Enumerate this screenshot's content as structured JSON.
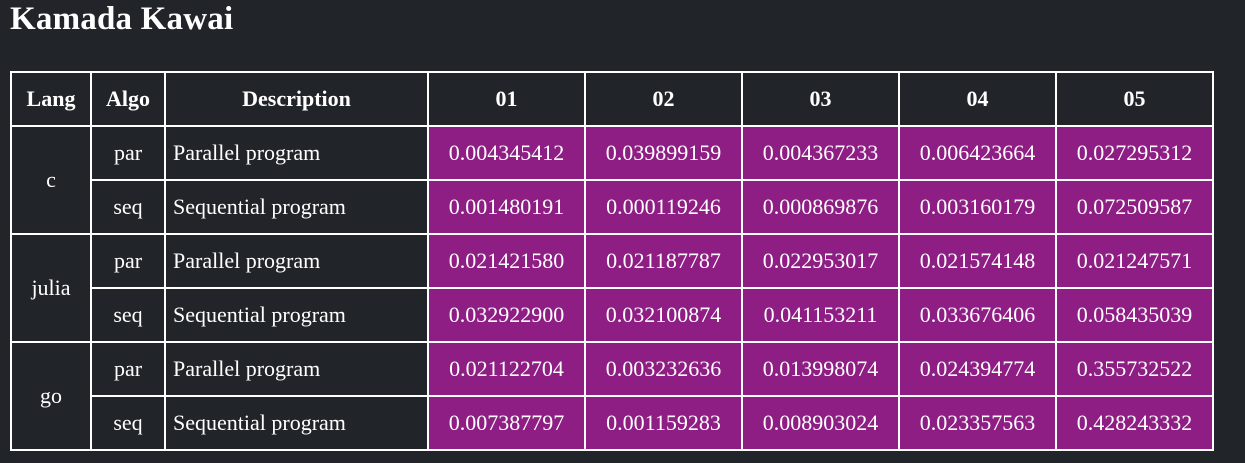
{
  "title": "Kamada Kawai",
  "headers": [
    "Lang",
    "Algo",
    "Description",
    "01",
    "02",
    "03",
    "04",
    "05"
  ],
  "groups": [
    {
      "lang": "c",
      "rows": [
        {
          "algo": "par",
          "description": "Parallel program",
          "values": [
            "0.004345412",
            "0.039899159",
            "0.004367233",
            "0.006423664",
            "0.027295312"
          ]
        },
        {
          "algo": "seq",
          "description": "Sequential program",
          "values": [
            "0.001480191",
            "0.000119246",
            "0.000869876",
            "0.003160179",
            "0.072509587"
          ]
        }
      ]
    },
    {
      "lang": "julia",
      "rows": [
        {
          "algo": "par",
          "description": "Parallel program",
          "values": [
            "0.021421580",
            "0.021187787",
            "0.022953017",
            "0.021574148",
            "0.021247571"
          ]
        },
        {
          "algo": "seq",
          "description": "Sequential program",
          "values": [
            "0.032922900",
            "0.032100874",
            "0.041153211",
            "0.033676406",
            "0.058435039"
          ]
        }
      ]
    },
    {
      "lang": "go",
      "rows": [
        {
          "algo": "par",
          "description": "Parallel program",
          "values": [
            "0.021122704",
            "0.003232636",
            "0.013998074",
            "0.024394774",
            "0.355732522"
          ]
        },
        {
          "algo": "seq",
          "description": "Sequential program",
          "values": [
            "0.007387797",
            "0.001159283",
            "0.008903024",
            "0.023357563",
            "0.428243332"
          ]
        }
      ]
    }
  ],
  "colors": {
    "background": "#212428",
    "value_cell": "#8e1e84",
    "border": "#ffffff",
    "text": "#ffffff"
  }
}
